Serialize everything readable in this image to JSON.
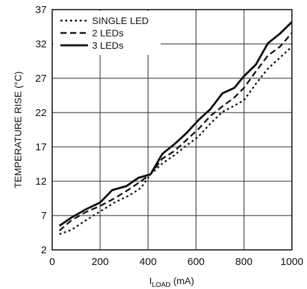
{
  "chart_data": {
    "type": "line",
    "xlabel_main": "I",
    "xlabel_sub": "LOAD",
    "xlabel_unit": " (mA)",
    "ylabel": "TEMPERATURE RISE (°C)",
    "xlim": [
      0,
      1000
    ],
    "ylim": [
      2,
      37
    ],
    "x_ticks": [
      0,
      200,
      400,
      600,
      800,
      1000
    ],
    "y_ticks": [
      2,
      7,
      12,
      17,
      22,
      27,
      32,
      37
    ],
    "grid": true,
    "legend_position": "top-left",
    "series": [
      {
        "name": "SINGLE LED",
        "dash": "dotted",
        "points": [
          [
            30,
            4.3
          ],
          [
            80,
            4.9
          ],
          [
            140,
            6.3
          ],
          [
            200,
            7.6
          ],
          [
            260,
            8.9
          ],
          [
            320,
            9.9
          ],
          [
            370,
            11
          ],
          [
            410,
            13
          ],
          [
            460,
            14.6
          ],
          [
            510,
            15.8
          ],
          [
            560,
            17.2
          ],
          [
            610,
            18.5
          ],
          [
            660,
            20.4
          ],
          [
            710,
            22.1
          ],
          [
            760,
            23
          ],
          [
            800,
            23.8
          ],
          [
            850,
            26.2
          ],
          [
            900,
            28.4
          ],
          [
            950,
            30
          ],
          [
            1000,
            31.6
          ]
        ]
      },
      {
        "name": "2 LEDs",
        "dash": "dashed",
        "points": [
          [
            30,
            4.8
          ],
          [
            80,
            6.3
          ],
          [
            140,
            7.5
          ],
          [
            200,
            8.4
          ],
          [
            260,
            9.5
          ],
          [
            320,
            10.8
          ],
          [
            370,
            12
          ],
          [
            410,
            13
          ],
          [
            460,
            15.3
          ],
          [
            510,
            16.4
          ],
          [
            560,
            18
          ],
          [
            610,
            19.6
          ],
          [
            660,
            21.5
          ],
          [
            710,
            22.9
          ],
          [
            760,
            24.2
          ],
          [
            800,
            25.6
          ],
          [
            850,
            28
          ],
          [
            900,
            30.3
          ],
          [
            950,
            31.6
          ],
          [
            1000,
            33.6
          ]
        ]
      },
      {
        "name": "3 LEDs",
        "dash": "solid",
        "points": [
          [
            30,
            5.5
          ],
          [
            80,
            6.7
          ],
          [
            140,
            7.9
          ],
          [
            200,
            8.9
          ],
          [
            250,
            10.7
          ],
          [
            310,
            11.3
          ],
          [
            360,
            12.5
          ],
          [
            410,
            13
          ],
          [
            460,
            16
          ],
          [
            510,
            17.4
          ],
          [
            560,
            19
          ],
          [
            610,
            20.9
          ],
          [
            660,
            22.5
          ],
          [
            710,
            24.8
          ],
          [
            760,
            25.6
          ],
          [
            800,
            27.3
          ],
          [
            850,
            29
          ],
          [
            900,
            32.1
          ],
          [
            950,
            33.5
          ],
          [
            1000,
            35.2
          ]
        ]
      }
    ]
  }
}
